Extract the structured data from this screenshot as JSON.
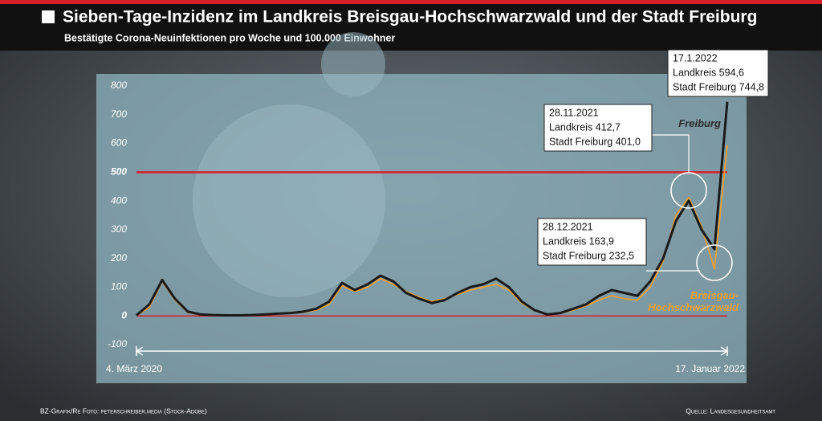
{
  "chart_data": {
    "type": "line",
    "title": "Sieben-Tage-Inzidenz im Landkreis Breisgau-Hochschwarzwald und der Stadt Freiburg",
    "subtitle": "Bestätigte Corona-Neuinfektionen pro Woche und 100.000 Einwohner",
    "categories": [
      "4. März 2020",
      null,
      null,
      null,
      null,
      null,
      null,
      null,
      null,
      null,
      null,
      null,
      null,
      null,
      null,
      null,
      null,
      null,
      null,
      null,
      null,
      null,
      null,
      null,
      null,
      null,
      null,
      null,
      null,
      null,
      null,
      null,
      null,
      null,
      null,
      null,
      null,
      null,
      null,
      null,
      null,
      null,
      null,
      null,
      null,
      null,
      "17. Januar 2022"
    ],
    "series": [
      {
        "name": "Freiburg",
        "color": "#1a1a1a",
        "values": [
          2,
          40,
          125,
          60,
          15,
          5,
          3,
          2,
          2,
          3,
          5,
          8,
          10,
          15,
          25,
          50,
          115,
          90,
          110,
          140,
          120,
          80,
          60,
          45,
          55,
          80,
          100,
          110,
          130,
          100,
          50,
          20,
          5,
          10,
          25,
          40,
          70,
          90,
          80,
          70,
          120,
          200,
          330,
          401.0,
          300,
          232.5,
          744.8
        ]
      },
      {
        "name": "Breisgau-Hochschwarzwald",
        "color": "#f0a030",
        "values": [
          1,
          30,
          120,
          55,
          12,
          4,
          2,
          2,
          2,
          3,
          4,
          7,
          9,
          13,
          20,
          40,
          105,
          85,
          100,
          130,
          110,
          85,
          65,
          50,
          60,
          75,
          90,
          100,
          110,
          90,
          45,
          18,
          5,
          10,
          20,
          35,
          55,
          70,
          60,
          55,
          100,
          190,
          350,
          412.7,
          310,
          163.9,
          594.6
        ]
      }
    ],
    "ylim": [
      -100,
      800
    ],
    "yticks": [
      -100,
      0,
      100,
      200,
      300,
      400,
      500,
      600,
      700,
      800
    ],
    "reference_lines": [
      0,
      500
    ],
    "reference_color": "#d8202a",
    "annotations": [
      {
        "lines": [
          "17.1.2022",
          "Landkreis 594,6",
          "Stadt Freiburg 744,8"
        ]
      },
      {
        "lines": [
          "28.11.2021",
          "Landkreis 412,7",
          "Stadt Freiburg 401,0"
        ]
      },
      {
        "lines": [
          "28.12.2021",
          "Landkreis 163,9",
          "Stadt Freiburg 232,5"
        ]
      }
    ],
    "credit": "BZ-Grafik/Re Foto: peterschreiber.media (Stock-Adobe)",
    "source": "Quelle: Landesgesundheitsamt"
  }
}
